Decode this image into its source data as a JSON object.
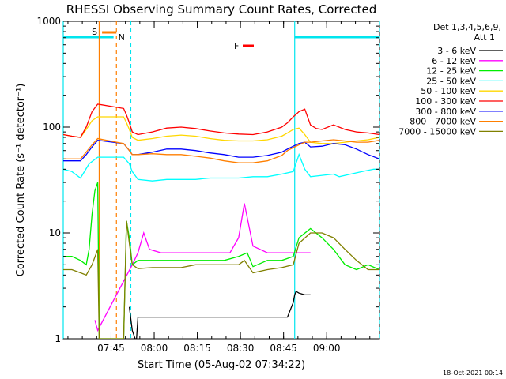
{
  "chart_data": {
    "type": "line",
    "title": "RHESSI Observing Summary Count Rates, Corrected",
    "xlabel": "Start Time (05-Aug-02 07:34:22)",
    "ylabel": "Corrected Count Rate (s⁻¹ detector⁻¹)",
    "yscale": "log",
    "ylim": [
      1,
      1000
    ],
    "xlim_minutes": [
      -6,
      104
    ],
    "x_ticks": [
      "07:45",
      "08:00",
      "08:15",
      "08:30",
      "08:45",
      "09:00"
    ],
    "y_ticks": [
      "1",
      "10",
      "100",
      "1000"
    ],
    "legend_title": [
      "Det 1,3,4,5,6,9,",
      "Att 1"
    ],
    "footer_date": "18-Oct-2021 00:14",
    "flags": {
      "saa": {
        "label": "S",
        "color": "#ff7f00",
        "start_min": 7.5,
        "end_min": 12.5
      },
      "night": {
        "label": "N",
        "color": "#00e5ee",
        "spans": [
          [
            -6,
            11.5
          ],
          [
            74.5,
            104
          ]
        ]
      },
      "flare": {
        "label": "F",
        "color": "#ff0000"
      }
    },
    "vertical_markers": [
      {
        "t_min": -6,
        "color": "#00e5ee",
        "style": "solid"
      },
      {
        "t_min": 6.5,
        "color": "#ff7f00",
        "style": "solid"
      },
      {
        "t_min": 12.5,
        "color": "#ff7f00",
        "style": "dashed"
      },
      {
        "t_min": 17.5,
        "color": "#00e5ee",
        "style": "dashed"
      },
      {
        "t_min": 74.5,
        "color": "#00e5ee",
        "style": "solid"
      },
      {
        "t_min": 104,
        "color": "#00e5ee",
        "style": "dashed"
      }
    ],
    "series": [
      {
        "name": "3 - 6 keV",
        "color": "#000000",
        "x": [
          17,
          18,
          19,
          19.5,
          20,
          25,
          30,
          35,
          40,
          45,
          50,
          55,
          60,
          65,
          70,
          72,
          74,
          74.5,
          75,
          76,
          78,
          80
        ],
        "y": [
          2,
          1.2,
          1,
          1,
          1.6,
          1.6,
          1.6,
          1.6,
          1.6,
          1.6,
          1.6,
          1.6,
          1.6,
          1.6,
          1.6,
          1.6,
          2.2,
          2.6,
          2.8,
          2.7,
          2.6,
          2.6
        ]
      },
      {
        "name": "6 - 12 keV",
        "color": "#ff00ff",
        "x": [
          5,
          6,
          18,
          20,
          22,
          24,
          28,
          35,
          45,
          52,
          55,
          57,
          60,
          65,
          72,
          75,
          80
        ],
        "y": [
          1.5,
          1.2,
          5,
          6.5,
          10,
          7,
          6.5,
          6.5,
          6.5,
          6.5,
          9,
          19,
          7.5,
          6.5,
          6.5,
          6.5,
          6.5
        ]
      },
      {
        "name": "12 - 25 keV",
        "color": "#00ee00",
        "x": [
          -6,
          -3,
          0,
          2,
          3,
          4,
          5,
          6,
          6.5,
          7,
          15,
          16,
          17,
          18,
          20,
          25,
          35,
          45,
          50,
          55,
          58,
          60,
          65,
          70,
          74,
          76,
          80,
          84,
          88,
          92,
          96,
          100,
          104
        ],
        "y": [
          6,
          6,
          5.5,
          5,
          7,
          15,
          25,
          30,
          1,
          1,
          1,
          13,
          9,
          5,
          5.5,
          5.5,
          5.5,
          5.5,
          5.5,
          6,
          6.5,
          4.8,
          5.5,
          5.5,
          6,
          9,
          11,
          9,
          7,
          5,
          4.5,
          5,
          4.5
        ]
      },
      {
        "name": "25 - 50 keV",
        "color": "#00ffff",
        "x": [
          -6,
          -3,
          0,
          3,
          6,
          15,
          17,
          18,
          20,
          25,
          30,
          35,
          40,
          45,
          50,
          55,
          60,
          65,
          70,
          74,
          76,
          78,
          80,
          84,
          88,
          90,
          94,
          98,
          102,
          104
        ],
        "y": [
          40,
          38,
          33,
          45,
          52,
          52,
          45,
          38,
          32,
          31,
          32,
          32,
          32,
          33,
          33,
          33,
          34,
          34,
          36,
          38,
          55,
          40,
          34,
          35,
          36,
          34,
          36,
          38,
          40,
          40
        ]
      },
      {
        "name": "50 - 100 keV",
        "color": "#ffd700",
        "x": [
          -6,
          -3,
          0,
          2,
          4,
          6,
          15,
          16,
          17,
          18,
          20,
          25,
          30,
          35,
          40,
          45,
          50,
          55,
          60,
          65,
          70,
          72,
          74,
          76,
          78,
          80,
          84,
          88,
          92,
          96,
          100,
          104
        ],
        "y": [
          85,
          82,
          80,
          95,
          115,
          125,
          125,
          110,
          95,
          80,
          75,
          78,
          82,
          84,
          82,
          78,
          75,
          74,
          74,
          76,
          82,
          88,
          95,
          98,
          85,
          72,
          70,
          70,
          72,
          74,
          76,
          80
        ]
      },
      {
        "name": "100 - 300 keV",
        "color": "#ff0000",
        "x": [
          -6,
          -3,
          0,
          2,
          4,
          6,
          15,
          16,
          17,
          18,
          20,
          25,
          30,
          35,
          40,
          45,
          50,
          55,
          60,
          65,
          70,
          72,
          74,
          76,
          78,
          80,
          82,
          84,
          88,
          92,
          96,
          100,
          104
        ],
        "y": [
          85,
          82,
          80,
          100,
          140,
          165,
          150,
          130,
          110,
          90,
          85,
          90,
          98,
          100,
          97,
          92,
          88,
          86,
          85,
          90,
          100,
          110,
          125,
          140,
          148,
          105,
          97,
          95,
          105,
          95,
          90,
          88,
          85
        ]
      },
      {
        "name": "300 - 800 keV",
        "color": "#0000ff",
        "x": [
          -6,
          -3,
          0,
          2,
          4,
          6,
          15,
          17,
          18,
          20,
          25,
          30,
          35,
          40,
          45,
          50,
          55,
          60,
          65,
          70,
          72,
          74,
          76,
          78,
          80,
          84,
          88,
          92,
          96,
          100,
          104
        ],
        "y": [
          48,
          48,
          48,
          55,
          65,
          75,
          70,
          60,
          55,
          55,
          58,
          62,
          62,
          60,
          57,
          55,
          52,
          52,
          54,
          58,
          62,
          66,
          70,
          72,
          65,
          66,
          70,
          68,
          62,
          55,
          50
        ]
      },
      {
        "name": "800 - 7000 keV",
        "color": "#ff7f00",
        "x": [
          -6,
          -3,
          0,
          2,
          4,
          6,
          15,
          17,
          18,
          20,
          25,
          30,
          35,
          40,
          45,
          50,
          55,
          60,
          65,
          70,
          72,
          74,
          76,
          78,
          80,
          84,
          88,
          92,
          96,
          100,
          104
        ],
        "y": [
          50,
          50,
          50,
          58,
          68,
          78,
          70,
          60,
          55,
          55,
          56,
          55,
          55,
          53,
          51,
          48,
          46,
          46,
          48,
          54,
          60,
          64,
          68,
          72,
          72,
          74,
          76,
          74,
          72,
          72,
          75
        ]
      },
      {
        "name": "7000 - 15000 keV",
        "color": "#808000",
        "x": [
          -6,
          -3,
          0,
          2,
          4,
          6,
          6.5,
          7,
          15,
          16,
          17,
          18,
          20,
          25,
          30,
          35,
          40,
          45,
          50,
          55,
          57,
          60,
          65,
          70,
          74,
          76,
          80,
          84,
          88,
          92,
          96,
          100,
          104
        ],
        "y": [
          4.5,
          4.5,
          4.2,
          4,
          5,
          7,
          1,
          1,
          1,
          13,
          8,
          5,
          4.6,
          4.7,
          4.7,
          4.7,
          5,
          5,
          5,
          5,
          5.5,
          4.2,
          4.5,
          4.7,
          5,
          8,
          10,
          10,
          9,
          7,
          5.5,
          4.5,
          4.5
        ]
      }
    ]
  }
}
